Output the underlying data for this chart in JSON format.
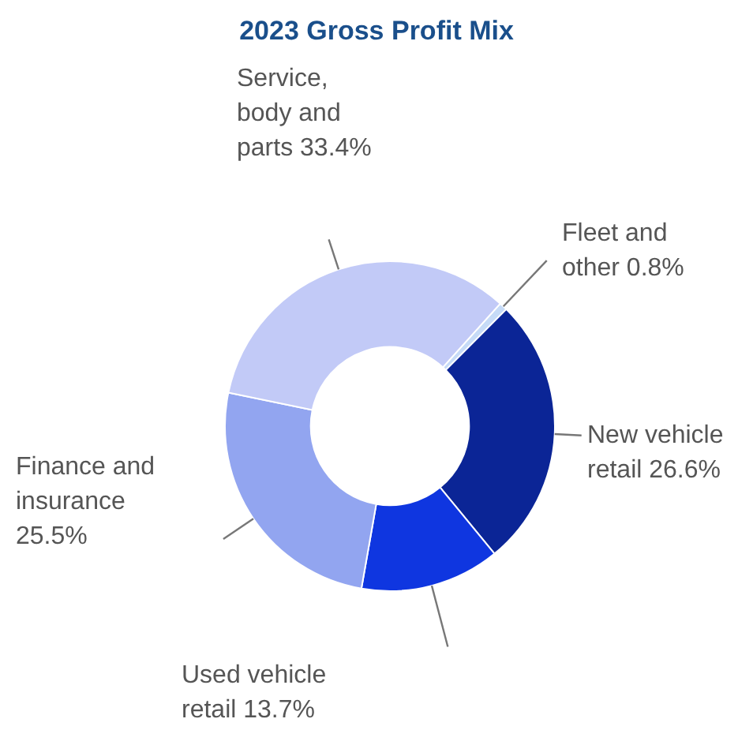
{
  "chart_data": {
    "type": "donut",
    "title": "2023 Gross Profit Mix",
    "categories": [
      "Fleet and other",
      "New vehicle retail",
      "Used vehicle retail",
      "Finance and insurance",
      "Service, body and parts"
    ],
    "values": [
      0.8,
      26.6,
      13.7,
      25.5,
      33.4
    ],
    "value_labels": [
      "0.8%",
      "26.6%",
      "13.7%",
      "25.5%",
      "33.4%"
    ],
    "colors": [
      "#c6dbf7",
      "#0b2596",
      "#0f36e0",
      "#92a5f0",
      "#c2caf7"
    ]
  }
}
